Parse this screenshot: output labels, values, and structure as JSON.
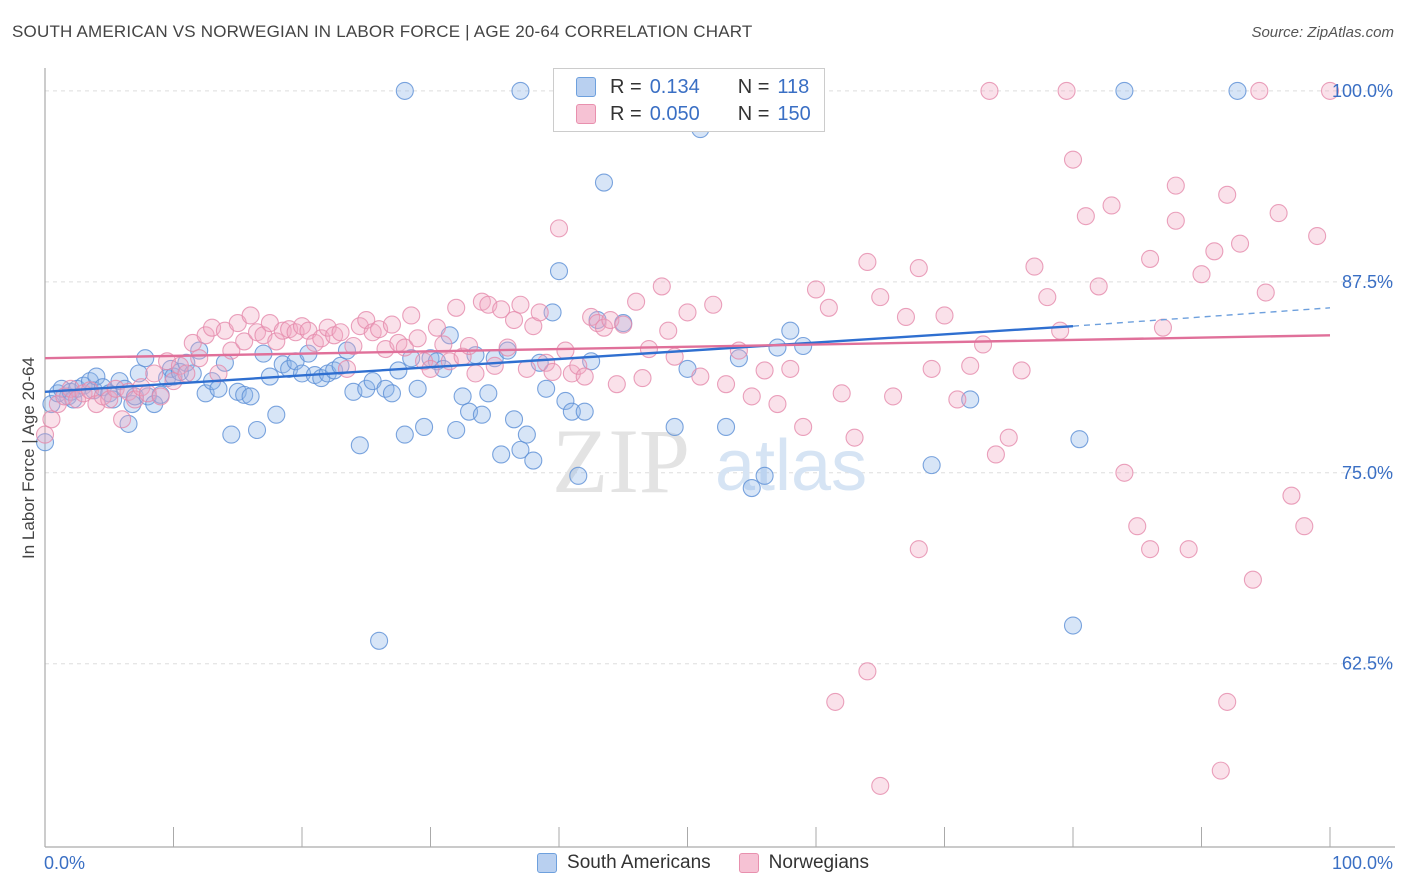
{
  "title": "SOUTH AMERICAN VS NORWEGIAN IN LABOR FORCE | AGE 20-64 CORRELATION CHART",
  "source": "Source: ZipAtlas.com",
  "watermark": {
    "zip": "ZIP",
    "atlas": "atlas"
  },
  "legend": {
    "rows": [
      {
        "r_label": "R =",
        "r_value": "0.134",
        "n_label": "N =",
        "n_value": "118",
        "color": "#6ea0dd",
        "fill": "#b9d0f0"
      },
      {
        "r_label": "R =",
        "r_value": "0.050",
        "n_label": "N =",
        "n_value": "150",
        "color": "#e890ae",
        "fill": "#f6c2d4"
      }
    ]
  },
  "bottom_legend": [
    "South Americans",
    "Norwegians"
  ],
  "chart_data": {
    "type": "scatter",
    "title": "SOUTH AMERICAN VS NORWEGIAN IN LABOR FORCE | AGE 20-64 CORRELATION CHART",
    "xlabel": "",
    "ylabel": "In Labor Force | Age 20-64",
    "xlim": [
      0,
      100
    ],
    "ylim": [
      50.5,
      101.5
    ],
    "x_tick_labels": [
      "0.0%",
      "100.0%"
    ],
    "y_ticks": [
      62.5,
      75.0,
      87.5,
      100.0
    ],
    "y_tick_labels": [
      "62.5%",
      "75.0%",
      "87.5%",
      "100.0%"
    ],
    "grid": "horizontal-dashed",
    "legend": "top-center",
    "series": [
      {
        "name": "South Americans",
        "color": "#5b8fd6",
        "trend": {
          "x": [
            0,
            80
          ],
          "y": [
            80.3,
            84.6
          ],
          "dashed_extension": {
            "x": [
              80,
              100
            ],
            "y": [
              84.6,
              85.8
            ]
          }
        },
        "points": [
          [
            0,
            77
          ],
          [
            0.5,
            79.5
          ],
          [
            1,
            80.2
          ],
          [
            1.3,
            80.5
          ],
          [
            1.8,
            80
          ],
          [
            2,
            80.3
          ],
          [
            2.2,
            79.8
          ],
          [
            2.5,
            80.5
          ],
          [
            3,
            80.7
          ],
          [
            3.5,
            81
          ],
          [
            3.8,
            80.4
          ],
          [
            4,
            81.3
          ],
          [
            4.5,
            80.6
          ],
          [
            5,
            80.2
          ],
          [
            5.3,
            79.8
          ],
          [
            5.8,
            81
          ],
          [
            6.2,
            80.5
          ],
          [
            6.5,
            78.2
          ],
          [
            6.8,
            79.5
          ],
          [
            7,
            80
          ],
          [
            7.3,
            81.5
          ],
          [
            7.8,
            82.5
          ],
          [
            8,
            80
          ],
          [
            8.5,
            79.5
          ],
          [
            9,
            80.1
          ],
          [
            9.5,
            81.2
          ],
          [
            9.8,
            81.8
          ],
          [
            10,
            81.3
          ],
          [
            10.5,
            81.6
          ],
          [
            11,
            82.2
          ],
          [
            11.5,
            81.5
          ],
          [
            12,
            83
          ],
          [
            12.5,
            80.2
          ],
          [
            13,
            81
          ],
          [
            13.5,
            80.5
          ],
          [
            14,
            82.2
          ],
          [
            14.5,
            77.5
          ],
          [
            15,
            80.3
          ],
          [
            15.5,
            80.1
          ],
          [
            16,
            80
          ],
          [
            16.5,
            77.8
          ],
          [
            17,
            82.8
          ],
          [
            17.5,
            81.3
          ],
          [
            18,
            78.8
          ],
          [
            18.5,
            82.1
          ],
          [
            19,
            81.8
          ],
          [
            19.5,
            82.3
          ],
          [
            20,
            81.5
          ],
          [
            20.5,
            82.8
          ],
          [
            21,
            81.4
          ],
          [
            21.5,
            81.2
          ],
          [
            22,
            81.5
          ],
          [
            22.5,
            81.7
          ],
          [
            23,
            82
          ],
          [
            23.5,
            83
          ],
          [
            24,
            80.3
          ],
          [
            24.5,
            76.8
          ],
          [
            25,
            80.5
          ],
          [
            25.5,
            81
          ],
          [
            26,
            64
          ],
          [
            26.5,
            80.5
          ],
          [
            27,
            80.2
          ],
          [
            27.5,
            81.7
          ],
          [
            28,
            77.5
          ],
          [
            28.5,
            82.5
          ],
          [
            29,
            80.5
          ],
          [
            29.5,
            78
          ],
          [
            30,
            82.5
          ],
          [
            30.5,
            82.3
          ],
          [
            31,
            81.8
          ],
          [
            31.5,
            84
          ],
          [
            32,
            77.8
          ],
          [
            32.5,
            80
          ],
          [
            33,
            79
          ],
          [
            33.5,
            82.7
          ],
          [
            34,
            78.8
          ],
          [
            34.5,
            80.2
          ],
          [
            35,
            82.5
          ],
          [
            35.5,
            76.2
          ],
          [
            36,
            83
          ],
          [
            36.5,
            78.5
          ],
          [
            37,
            76.5
          ],
          [
            37.5,
            77.5
          ],
          [
            38,
            75.8
          ],
          [
            38.5,
            82.2
          ],
          [
            39,
            80.5
          ],
          [
            39.5,
            85.5
          ],
          [
            40,
            88.2
          ],
          [
            40.5,
            79.7
          ],
          [
            41,
            79
          ],
          [
            41.5,
            74.8
          ],
          [
            42,
            79
          ],
          [
            42.5,
            82.3
          ],
          [
            43,
            85
          ],
          [
            43.5,
            94
          ],
          [
            44,
            100
          ],
          [
            44.5,
            100
          ],
          [
            45,
            84.8
          ],
          [
            47,
            100
          ],
          [
            49,
            78
          ],
          [
            50,
            81.8
          ],
          [
            51,
            97.5
          ],
          [
            53,
            78
          ],
          [
            54,
            82.5
          ],
          [
            55,
            74
          ],
          [
            56,
            74.8
          ],
          [
            57,
            83.2
          ],
          [
            58,
            84.3
          ],
          [
            59,
            83.3
          ],
          [
            28,
            100
          ],
          [
            37,
            100
          ],
          [
            52,
            100
          ],
          [
            69,
            75.5
          ],
          [
            72,
            79.8
          ],
          [
            80,
            65
          ],
          [
            80.5,
            77.2
          ],
          [
            92.8,
            100
          ],
          [
            84,
            100
          ]
        ]
      },
      {
        "name": "Norwegians",
        "color": "#e58aab",
        "trend": {
          "x": [
            0,
            100
          ],
          "y": [
            82.5,
            84
          ]
        },
        "points": [
          [
            0,
            77.5
          ],
          [
            0.5,
            78.5
          ],
          [
            1,
            79.5
          ],
          [
            1.5,
            80
          ],
          [
            2,
            80.5
          ],
          [
            2.5,
            79.8
          ],
          [
            3,
            80.2
          ],
          [
            3.5,
            80.4
          ],
          [
            4,
            79.5
          ],
          [
            4.5,
            80
          ],
          [
            5,
            79.8
          ],
          [
            5.5,
            80.5
          ],
          [
            6,
            78.5
          ],
          [
            6.5,
            80.3
          ],
          [
            7,
            79.8
          ],
          [
            7.5,
            80.6
          ],
          [
            8,
            80.2
          ],
          [
            8.5,
            81.5
          ],
          [
            9,
            80
          ],
          [
            9.5,
            82.3
          ],
          [
            10,
            81
          ],
          [
            10.5,
            82
          ],
          [
            11,
            81.5
          ],
          [
            11.5,
            83.5
          ],
          [
            12,
            82.5
          ],
          [
            12.5,
            84
          ],
          [
            13,
            84.5
          ],
          [
            13.5,
            81.5
          ],
          [
            14,
            84.3
          ],
          [
            14.5,
            83
          ],
          [
            15,
            84.8
          ],
          [
            15.5,
            83.6
          ],
          [
            16,
            85.3
          ],
          [
            16.5,
            84.2
          ],
          [
            17,
            84
          ],
          [
            17.5,
            84.8
          ],
          [
            18,
            83.6
          ],
          [
            18.5,
            84.3
          ],
          [
            19,
            84.4
          ],
          [
            19.5,
            84.2
          ],
          [
            20,
            84.6
          ],
          [
            20.5,
            84.3
          ],
          [
            21,
            83.5
          ],
          [
            21.5,
            83.8
          ],
          [
            22,
            84.5
          ],
          [
            22.5,
            84
          ],
          [
            23,
            84.2
          ],
          [
            23.5,
            81.8
          ],
          [
            24,
            83.3
          ],
          [
            24.5,
            84.6
          ],
          [
            25,
            85
          ],
          [
            25.5,
            84.2
          ],
          [
            26,
            84.4
          ],
          [
            26.5,
            83.1
          ],
          [
            27,
            84.7
          ],
          [
            27.5,
            83.5
          ],
          [
            28,
            83.2
          ],
          [
            28.5,
            85.3
          ],
          [
            29,
            83.8
          ],
          [
            29.5,
            82.3
          ],
          [
            30,
            81.8
          ],
          [
            30.5,
            84.5
          ],
          [
            31,
            83.4
          ],
          [
            31.5,
            82.3
          ],
          [
            32,
            85.8
          ],
          [
            32.5,
            82.6
          ],
          [
            33,
            83.3
          ],
          [
            33.5,
            81.5
          ],
          [
            34,
            86.2
          ],
          [
            34.5,
            86
          ],
          [
            35,
            82
          ],
          [
            35.5,
            85.7
          ],
          [
            36,
            83.2
          ],
          [
            36.5,
            85
          ],
          [
            37,
            86
          ],
          [
            37.5,
            81.8
          ],
          [
            38,
            84.6
          ],
          [
            38.5,
            85.5
          ],
          [
            39,
            82.2
          ],
          [
            39.5,
            81.6
          ],
          [
            40,
            91
          ],
          [
            40.5,
            83
          ],
          [
            41,
            81.5
          ],
          [
            41.5,
            82
          ],
          [
            42,
            81.3
          ],
          [
            42.5,
            85.2
          ],
          [
            43,
            84.8
          ],
          [
            43.5,
            84.5
          ],
          [
            44,
            85
          ],
          [
            44.5,
            80.8
          ],
          [
            45,
            84.7
          ],
          [
            46,
            86.2
          ],
          [
            46.5,
            81.2
          ],
          [
            47,
            83.1
          ],
          [
            48,
            87.2
          ],
          [
            48.5,
            84.3
          ],
          [
            49,
            82.6
          ],
          [
            50,
            85.5
          ],
          [
            51,
            81.3
          ],
          [
            52,
            86
          ],
          [
            53,
            80.8
          ],
          [
            54,
            83
          ],
          [
            55,
            80
          ],
          [
            56,
            81.7
          ],
          [
            57,
            79.5
          ],
          [
            58,
            81.8
          ],
          [
            59,
            78
          ],
          [
            60,
            87
          ],
          [
            61,
            85.8
          ],
          [
            62,
            80.2
          ],
          [
            63,
            77.3
          ],
          [
            64,
            88.8
          ],
          [
            65,
            86.5
          ],
          [
            66,
            80
          ],
          [
            67,
            85.2
          ],
          [
            68,
            88.4
          ],
          [
            69,
            81.8
          ],
          [
            70,
            85.3
          ],
          [
            71,
            79.8
          ],
          [
            72,
            82
          ],
          [
            73,
            83.4
          ],
          [
            74,
            76.2
          ],
          [
            75,
            77.3
          ],
          [
            76,
            81.7
          ],
          [
            77,
            88.5
          ],
          [
            78,
            86.5
          ],
          [
            79,
            84.3
          ],
          [
            80,
            95.5
          ],
          [
            81,
            91.8
          ],
          [
            82,
            87.2
          ],
          [
            83,
            92.5
          ],
          [
            84,
            75
          ],
          [
            85,
            71.5
          ],
          [
            86,
            89
          ],
          [
            87,
            84.5
          ],
          [
            88,
            93.8
          ],
          [
            89,
            70
          ],
          [
            90,
            88
          ],
          [
            91,
            89.5
          ],
          [
            92,
            93.2
          ],
          [
            93,
            90
          ],
          [
            94,
            68
          ],
          [
            95,
            86.8
          ],
          [
            96,
            92
          ],
          [
            97,
            73.5
          ],
          [
            98,
            71.5
          ],
          [
            99,
            90.5
          ],
          [
            100,
            100
          ],
          [
            73.5,
            100
          ],
          [
            57.5,
            100
          ],
          [
            64,
            62
          ],
          [
            61.5,
            60
          ],
          [
            65,
            54.5
          ],
          [
            68,
            70
          ],
          [
            79.5,
            100
          ],
          [
            94.5,
            100
          ],
          [
            86,
            70
          ],
          [
            88,
            91.5
          ],
          [
            92,
            60
          ],
          [
            91.5,
            55.5
          ]
        ]
      }
    ]
  }
}
